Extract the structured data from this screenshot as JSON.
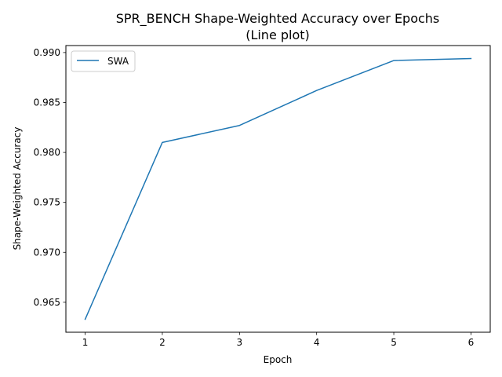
{
  "chart_data": {
    "type": "line",
    "title": "SPR_BENCH Shape-Weighted Accuracy over Epochs",
    "subtitle": "(Line plot)",
    "xlabel": "Epoch",
    "ylabel": "Shape-Weighted Accuracy",
    "x": [
      1,
      2,
      3,
      4,
      5,
      6
    ],
    "series": [
      {
        "name": "SWA",
        "color": "#1f77b4",
        "values": [
          0.9633,
          0.981,
          0.9827,
          0.9862,
          0.9892,
          0.9894
        ]
      }
    ],
    "xlim": [
      0.75,
      6.25
    ],
    "ylim": [
      0.962,
      0.9907
    ],
    "xticks": [
      "1",
      "2",
      "3",
      "4",
      "5",
      "6"
    ],
    "yticks": [
      "0.965",
      "0.970",
      "0.975",
      "0.980",
      "0.985",
      "0.990"
    ],
    "grid": false,
    "legend_position": "top-left"
  }
}
